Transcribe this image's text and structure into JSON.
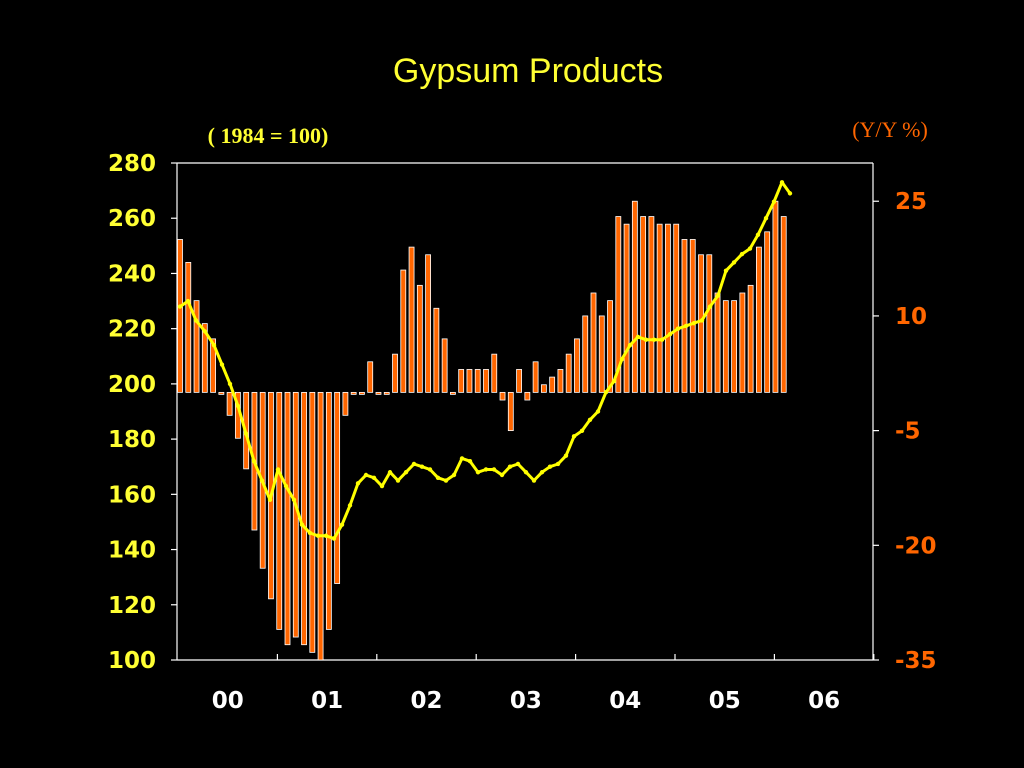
{
  "chart_data": {
    "type": "bar+line",
    "title": "Gypsum Products",
    "left_axis": {
      "label": "( 1984 = 100)",
      "range": [
        100,
        280
      ],
      "ticks": [
        100,
        120,
        140,
        160,
        180,
        200,
        220,
        240,
        260,
        280
      ]
    },
    "right_axis": {
      "label": "(Y/Y %)",
      "range": [
        -35,
        30
      ],
      "ticks": [
        "-35",
        "-20",
        "-5",
        "10",
        "25"
      ]
    },
    "x_axis": {
      "ticks": [
        "00",
        "01",
        "02",
        "03",
        "04",
        "05",
        "06"
      ]
    },
    "series": [
      {
        "kind": "bar",
        "axis": "right",
        "color": "#ff6600",
        "values": [
          20,
          17,
          12,
          9,
          7,
          0,
          -3,
          -6,
          -10,
          -18,
          -23,
          -27,
          -31,
          -33,
          -32,
          -33,
          -34,
          -35,
          -31,
          -25,
          -3,
          0,
          0,
          4,
          0,
          0,
          5,
          16,
          19,
          14,
          18,
          11,
          7,
          0,
          3,
          3,
          3,
          3,
          5,
          -1,
          -5,
          3,
          -1,
          4,
          1,
          2,
          3,
          5,
          7,
          10,
          13,
          10,
          12,
          23,
          22,
          25,
          23,
          23,
          22,
          22,
          22,
          20,
          20,
          18,
          18,
          13,
          12,
          12,
          13,
          14,
          19,
          21,
          25,
          23
        ],
        "first_bar_x": 180,
        "bar_spacing": 8.27
      },
      {
        "kind": "line",
        "axis": "left",
        "color": "#ffff00",
        "points": [
          [
            180,
            228
          ],
          [
            188,
            230
          ],
          [
            196,
            223
          ],
          [
            205,
            219
          ],
          [
            214,
            214
          ],
          [
            222,
            207
          ],
          [
            230,
            200
          ],
          [
            238,
            192
          ],
          [
            246,
            182
          ],
          [
            254,
            172
          ],
          [
            262,
            165
          ],
          [
            270,
            158
          ],
          [
            278,
            169
          ],
          [
            286,
            163
          ],
          [
            294,
            158
          ],
          [
            302,
            149
          ],
          [
            310,
            146
          ],
          [
            318,
            145
          ],
          [
            326,
            145
          ],
          [
            334,
            144
          ],
          [
            342,
            149
          ],
          [
            350,
            156
          ],
          [
            358,
            164
          ],
          [
            366,
            167
          ],
          [
            374,
            166
          ],
          [
            382,
            163
          ],
          [
            390,
            168
          ],
          [
            398,
            165
          ],
          [
            406,
            168
          ],
          [
            414,
            171
          ],
          [
            422,
            170
          ],
          [
            430,
            169
          ],
          [
            438,
            166
          ],
          [
            446,
            165
          ],
          [
            454,
            167
          ],
          [
            462,
            173
          ],
          [
            470,
            172
          ],
          [
            478,
            168
          ],
          [
            486,
            169
          ],
          [
            494,
            169
          ],
          [
            502,
            167
          ],
          [
            510,
            170
          ],
          [
            518,
            171
          ],
          [
            526,
            168
          ],
          [
            534,
            165
          ],
          [
            542,
            168
          ],
          [
            550,
            170
          ],
          [
            558,
            171
          ],
          [
            566,
            174
          ],
          [
            574,
            181
          ],
          [
            582,
            183
          ],
          [
            590,
            187
          ],
          [
            598,
            190
          ],
          [
            606,
            197
          ],
          [
            614,
            201
          ],
          [
            622,
            209
          ],
          [
            630,
            214
          ],
          [
            638,
            217
          ],
          [
            646,
            216
          ],
          [
            654,
            216
          ],
          [
            662,
            216
          ],
          [
            670,
            218
          ],
          [
            678,
            220
          ],
          [
            686,
            221
          ],
          [
            694,
            222
          ],
          [
            702,
            223
          ],
          [
            710,
            228
          ],
          [
            718,
            232
          ],
          [
            726,
            241
          ],
          [
            734,
            244
          ],
          [
            742,
            247
          ],
          [
            750,
            249
          ],
          [
            758,
            254
          ],
          [
            766,
            260
          ],
          [
            774,
            266
          ],
          [
            782,
            273
          ],
          [
            790,
            269
          ]
        ]
      }
    ]
  }
}
